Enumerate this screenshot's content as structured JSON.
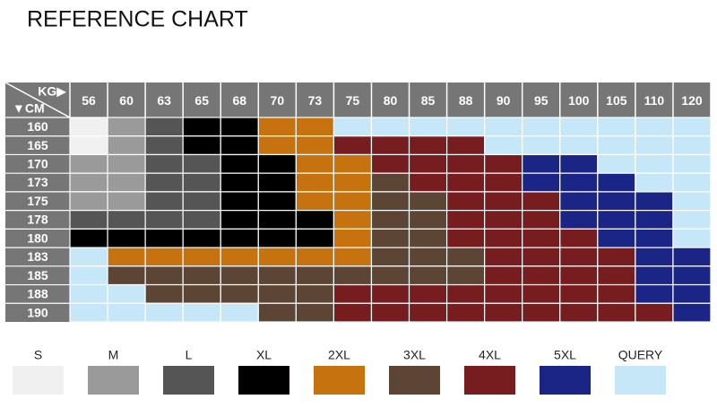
{
  "title": "REFERENCE CHART",
  "table": {
    "corner_top": "KG▶",
    "corner_bottom": "▼CM",
    "columns": [
      56,
      60,
      63,
      65,
      68,
      70,
      73,
      75,
      80,
      85,
      88,
      90,
      95,
      100,
      105,
      110,
      120
    ],
    "rows": [
      {
        "height": 160,
        "sizes": [
          "S",
          "M",
          "L",
          "XL",
          "XL",
          "2XL",
          "2XL",
          "QUERY",
          "QUERY",
          "QUERY",
          "QUERY",
          "QUERY",
          "QUERY",
          "QUERY",
          "QUERY",
          "QUERY",
          "QUERY"
        ]
      },
      {
        "height": 165,
        "sizes": [
          "S",
          "M",
          "L",
          "XL",
          "XL",
          "2XL",
          "2XL",
          "4XL",
          "4XL",
          "4XL",
          "4XL",
          "QUERY",
          "QUERY",
          "QUERY",
          "QUERY",
          "QUERY",
          "QUERY"
        ]
      },
      {
        "height": 170,
        "sizes": [
          "M",
          "M",
          "L",
          "L",
          "XL",
          "XL",
          "2XL",
          "2XL",
          "4XL",
          "4XL",
          "4XL",
          "4XL",
          "5XL",
          "5XL",
          "QUERY",
          "QUERY",
          "QUERY"
        ]
      },
      {
        "height": 173,
        "sizes": [
          "M",
          "M",
          "L",
          "L",
          "XL",
          "XL",
          "2XL",
          "2XL",
          "3XL",
          "4XL",
          "4XL",
          "4XL",
          "5XL",
          "5XL",
          "5XL",
          "QUERY",
          "QUERY"
        ]
      },
      {
        "height": 175,
        "sizes": [
          "M",
          "M",
          "L",
          "L",
          "XL",
          "XL",
          "2XL",
          "2XL",
          "3XL",
          "3XL",
          "4XL",
          "4XL",
          "4XL",
          "5XL",
          "5XL",
          "5XL",
          "QUERY"
        ]
      },
      {
        "height": 178,
        "sizes": [
          "L",
          "L",
          "L",
          "L",
          "XL",
          "XL",
          "XL",
          "2XL",
          "3XL",
          "3XL",
          "4XL",
          "4XL",
          "4XL",
          "5XL",
          "5XL",
          "5XL",
          "QUERY"
        ]
      },
      {
        "height": 180,
        "sizes": [
          "XL",
          "XL",
          "XL",
          "XL",
          "XL",
          "XL",
          "XL",
          "2XL",
          "3XL",
          "3XL",
          "4XL",
          "4XL",
          "4XL",
          "4XL",
          "5XL",
          "5XL",
          "QUERY"
        ]
      },
      {
        "height": 183,
        "sizes": [
          "QUERY",
          "2XL",
          "2XL",
          "2XL",
          "2XL",
          "2XL",
          "2XL",
          "2XL",
          "3XL",
          "3XL",
          "3XL",
          "4XL",
          "4XL",
          "4XL",
          "4XL",
          "5XL",
          "5XL"
        ]
      },
      {
        "height": 185,
        "sizes": [
          "QUERY",
          "3XL",
          "3XL",
          "3XL",
          "3XL",
          "3XL",
          "3XL",
          "3XL",
          "3XL",
          "3XL",
          "3XL",
          "4XL",
          "4XL",
          "4XL",
          "4XL",
          "5XL",
          "5XL"
        ]
      },
      {
        "height": 188,
        "sizes": [
          "QUERY",
          "QUERY",
          "3XL",
          "3XL",
          "3XL",
          "3XL",
          "3XL",
          "4XL",
          "4XL",
          "4XL",
          "4XL",
          "4XL",
          "4XL",
          "4XL",
          "4XL",
          "5XL",
          "5XL"
        ]
      },
      {
        "height": 190,
        "sizes": [
          "QUERY",
          "QUERY",
          "QUERY",
          "QUERY",
          "QUERY",
          "3XL",
          "3XL",
          "4XL",
          "4XL",
          "4XL",
          "4XL",
          "4XL",
          "4XL",
          "4XL",
          "4XL",
          "4XL",
          "5XL"
        ]
      }
    ]
  },
  "legend": [
    {
      "label": "S",
      "color": "#f0f0f0"
    },
    {
      "label": "M",
      "color": "#9a9a9a"
    },
    {
      "label": "L",
      "color": "#555555"
    },
    {
      "label": "XL",
      "color": "#000000"
    },
    {
      "label": "2XL",
      "color": "#c6730f"
    },
    {
      "label": "3XL",
      "color": "#5d4536"
    },
    {
      "label": "4XL",
      "color": "#781d1f"
    },
    {
      "label": "5XL",
      "color": "#1b2585"
    },
    {
      "label": "QUERY",
      "color": "#c6e7f7"
    }
  ]
}
